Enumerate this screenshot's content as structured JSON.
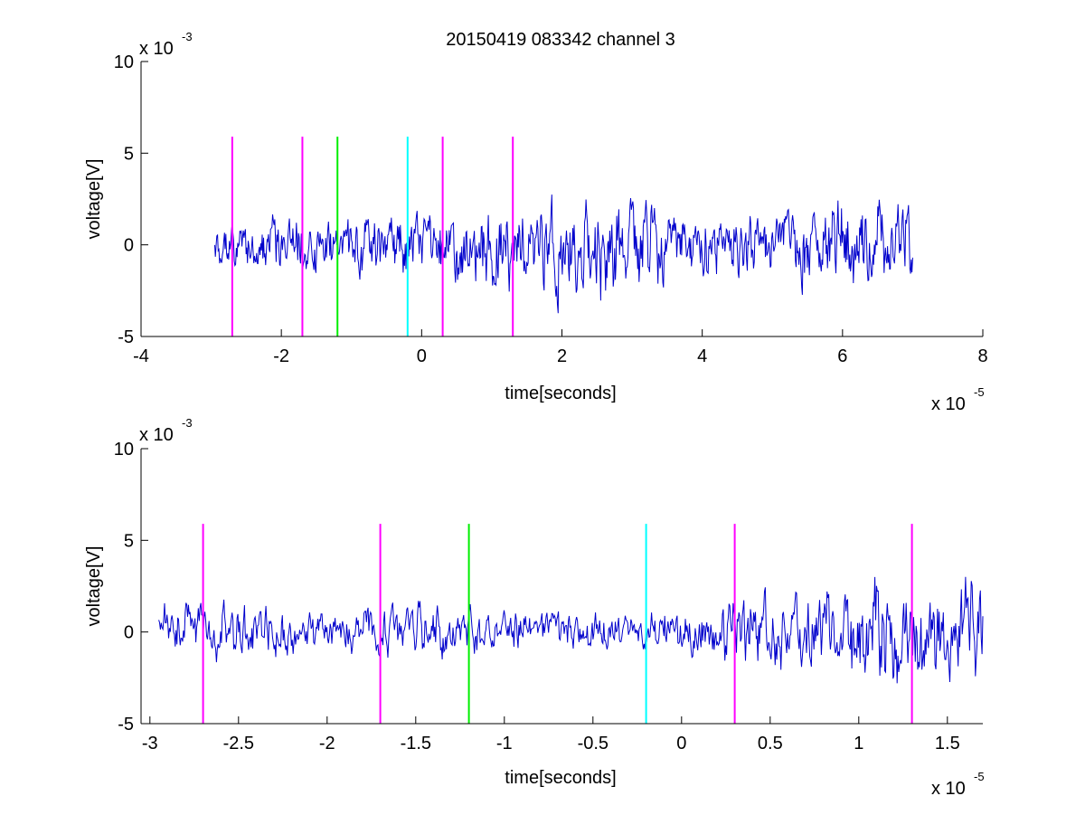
{
  "figure": {
    "title": "20150419 083342 channel 3"
  },
  "colors": {
    "trace": "#0000cc",
    "magenta": "#ff00ff",
    "green": "#00ee00",
    "cyan": "#00ffff",
    "axis": "#000000"
  },
  "chart_data": [
    {
      "type": "line",
      "title": "20150419 083342 channel 3",
      "xlabel": "time[seconds]",
      "ylabel": "voltage[V]",
      "x_exponent": "x 10",
      "x_exponent_power": "-5",
      "y_exponent": "x 10",
      "y_exponent_power": "-3",
      "xlim": [
        -4,
        8
      ],
      "ylim": [
        -5,
        10
      ],
      "xticks": [
        -4,
        -2,
        0,
        2,
        4,
        6,
        8
      ],
      "xtick_labels": [
        "-4",
        "-2",
        "0",
        "2",
        "4",
        "6",
        "8"
      ],
      "yticks": [
        -5,
        0,
        5,
        10
      ],
      "ytick_labels": [
        "-5",
        "0",
        "5",
        "10"
      ],
      "grid": false,
      "trace": {
        "color": "#0000cc",
        "x_start": -2.95,
        "x_end": 7.0,
        "amplitude_profile": [
          [
            -2.95,
            1.1
          ],
          [
            -1.4,
            1.5
          ],
          [
            0.3,
            1.7
          ],
          [
            1.0,
            2.5
          ],
          [
            1.5,
            2.0
          ],
          [
            2.8,
            3.0
          ],
          [
            3.5,
            1.6
          ],
          [
            5.0,
            1.5
          ],
          [
            6.2,
            2.6
          ],
          [
            7.0,
            2.0
          ]
        ]
      },
      "markers": [
        {
          "x": -2.7,
          "color": "#ff00ff",
          "ymin": -5,
          "ymax": 5.9
        },
        {
          "x": -1.7,
          "color": "#ff00ff",
          "ymin": -5,
          "ymax": 5.9
        },
        {
          "x": -1.2,
          "color": "#00ee00",
          "ymin": -5,
          "ymax": 5.9
        },
        {
          "x": -0.2,
          "color": "#00ffff",
          "ymin": -5,
          "ymax": 5.9
        },
        {
          "x": 0.3,
          "color": "#ff00ff",
          "ymin": -5,
          "ymax": 5.9
        },
        {
          "x": 1.3,
          "color": "#ff00ff",
          "ymin": -5,
          "ymax": 5.9
        }
      ]
    },
    {
      "type": "line",
      "title": "",
      "xlabel": "time[seconds]",
      "ylabel": "voltage[V]",
      "x_exponent": "x 10",
      "x_exponent_power": "-5",
      "y_exponent": "x 10",
      "y_exponent_power": "-3",
      "xlim": [
        -3.05,
        1.7
      ],
      "ylim": [
        -5,
        10
      ],
      "xticks": [
        -3,
        -2.5,
        -2,
        -1.5,
        -1,
        -0.5,
        0,
        0.5,
        1,
        1.5
      ],
      "xtick_labels": [
        "-3",
        "-2.5",
        "-2",
        "-1.5",
        "-1",
        "-0.5",
        "0",
        "0.5",
        "1",
        "1.5"
      ],
      "yticks": [
        -5,
        0,
        5,
        10
      ],
      "ytick_labels": [
        "-5",
        "0",
        "5",
        "10"
      ],
      "grid": false,
      "trace": {
        "color": "#0000cc",
        "x_start": -2.95,
        "x_end": 1.7,
        "amplitude_profile": [
          [
            -2.95,
            1.5
          ],
          [
            -2.5,
            1.4
          ],
          [
            -2.0,
            1.0
          ],
          [
            -1.4,
            1.6
          ],
          [
            -1.0,
            1.0
          ],
          [
            -0.2,
            0.9
          ],
          [
            0.2,
            1.6
          ],
          [
            0.7,
            2.0
          ],
          [
            1.2,
            3.0
          ],
          [
            1.7,
            2.5
          ]
        ]
      },
      "markers": [
        {
          "x": -2.7,
          "color": "#ff00ff",
          "ymin": -5,
          "ymax": 5.9
        },
        {
          "x": -1.7,
          "color": "#ff00ff",
          "ymin": -5,
          "ymax": 5.9
        },
        {
          "x": -1.2,
          "color": "#00ee00",
          "ymin": -5,
          "ymax": 5.9
        },
        {
          "x": -0.2,
          "color": "#00ffff",
          "ymin": -5,
          "ymax": 5.9
        },
        {
          "x": 0.3,
          "color": "#ff00ff",
          "ymin": -5,
          "ymax": 5.9
        },
        {
          "x": 1.3,
          "color": "#ff00ff",
          "ymin": -5,
          "ymax": 5.9
        }
      ]
    }
  ]
}
